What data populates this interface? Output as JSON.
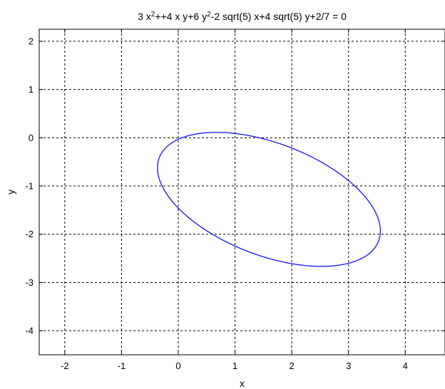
{
  "chart_data": {
    "type": "line",
    "title": {
      "prefix": "3 x",
      "sup1": "2",
      "middle": "++4 x y+6 y",
      "sup2": "2",
      "suffix": "-2 sqrt(5) x+4 sqrt(5) y+2/7 = 0"
    },
    "xlabel": "x",
    "ylabel": "y",
    "xlim": [
      -2.45,
      4.7
    ],
    "ylim": [
      -4.5,
      2.25
    ],
    "xticks": [
      -2,
      -1,
      0,
      1,
      2,
      3,
      4
    ],
    "yticks": [
      -4,
      -3,
      -2,
      -1,
      0,
      1,
      2
    ],
    "xtick_labels": [
      "-2",
      "-1",
      "0",
      "1",
      "2",
      "3",
      "4"
    ],
    "ytick_labels": [
      "-4",
      "-3",
      "-2",
      "-1",
      "0",
      "1",
      "2"
    ],
    "grid": true,
    "series": [
      {
        "color": "#0000ff",
        "curve": {
          "kind": "conic",
          "A": 3,
          "B": 4,
          "C": 6,
          "D": -4.47213595,
          "E": 8.94427191,
          "F": 0.285714286
        }
      }
    ]
  }
}
